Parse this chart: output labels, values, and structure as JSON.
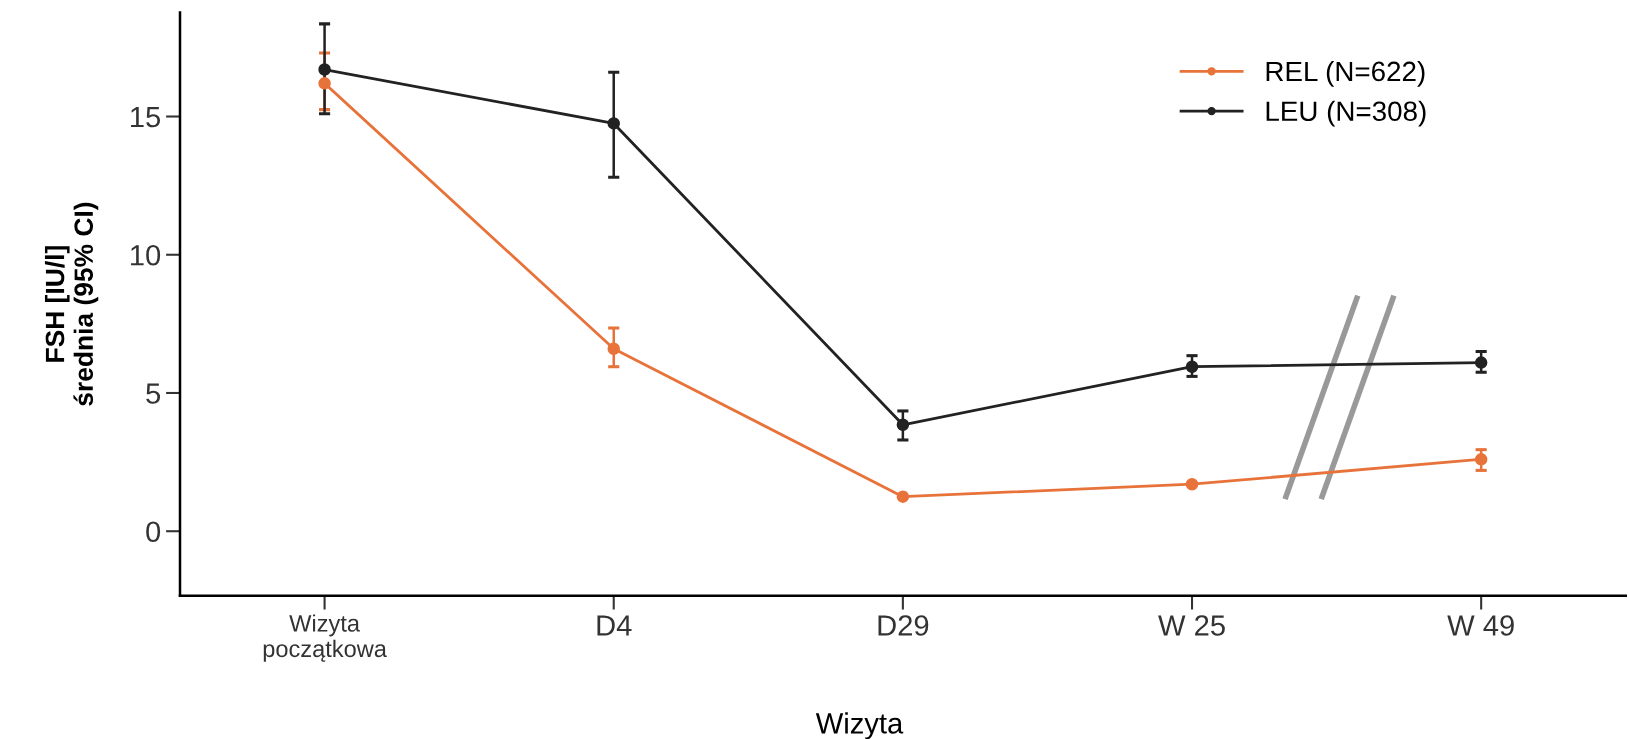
{
  "chart_data": {
    "type": "line",
    "xlabel": "Wizyta",
    "ylabel": "FSH [IU/l]\nśrednia (95% CI)",
    "categories": [
      "Wizyta\npoczątkowa",
      "D4",
      "D29",
      "W 25",
      "W 49"
    ],
    "ylim": [
      -2.33,
      18.76
    ],
    "yticks": [
      0,
      5,
      10,
      15
    ],
    "series": [
      {
        "name": "REL (N=622)",
        "color": "#e8733a",
        "values": [
          16.2,
          6.6,
          1.25,
          1.7,
          2.6
        ],
        "errors": [
          [
            15.25,
            17.3
          ],
          [
            5.95,
            7.35
          ],
          null,
          null,
          [
            2.2,
            2.95
          ]
        ]
      },
      {
        "name": "LEU (N=308)",
        "color": "#222222",
        "values": [
          16.7,
          14.75,
          3.85,
          5.95,
          6.1
        ],
        "errors": [
          [
            15.1,
            18.35
          ],
          [
            12.8,
            16.6
          ],
          [
            3.3,
            4.35
          ],
          [
            5.6,
            6.35
          ],
          [
            5.75,
            6.5
          ]
        ]
      }
    ],
    "marker": "circle",
    "line_style": "solid",
    "legend": "top right",
    "grid": false
  }
}
